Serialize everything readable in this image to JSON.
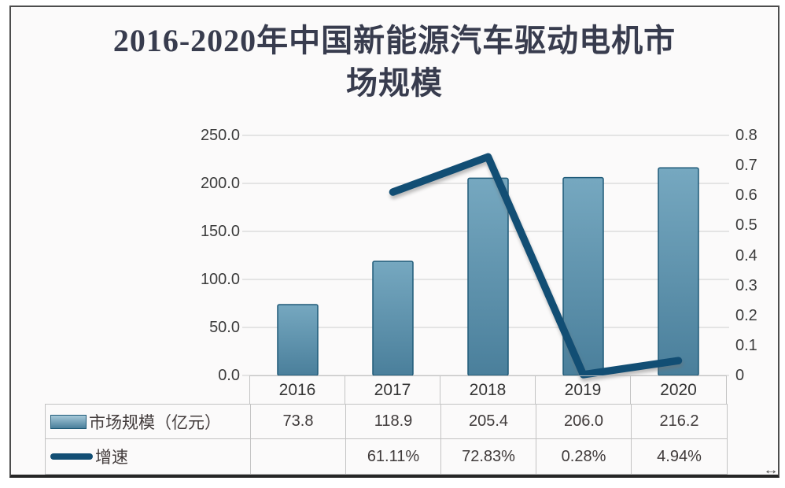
{
  "title": {
    "line1": "2016-2020年中国新能源汽车驱动电机市",
    "line2": "场规模"
  },
  "chart_data": {
    "type": "bar+line",
    "categories": [
      "2016",
      "2017",
      "2018",
      "2019",
      "2020"
    ],
    "series": [
      {
        "name": "市场规模（亿元）",
        "type": "bar",
        "axis": "left",
        "values": [
          73.8,
          118.9,
          205.4,
          206.0,
          216.2
        ]
      },
      {
        "name": "增速",
        "type": "line",
        "axis": "right",
        "values": [
          null,
          0.6111,
          0.7283,
          0.0028,
          0.0494
        ]
      }
    ],
    "left_axis": {
      "range": [
        0,
        250
      ],
      "ticks": [
        "250.0",
        "200.0",
        "150.0",
        "100.0",
        "50.0",
        "0.0"
      ]
    },
    "right_axis": {
      "range": [
        0,
        0.8
      ],
      "ticks": [
        "0.8",
        "0.7",
        "0.6",
        "0.5",
        "0.4",
        "0.3",
        "0.2",
        "0.1",
        "0"
      ]
    },
    "grid": true,
    "legend_position": "table-left"
  },
  "table": {
    "header": [
      "2016",
      "2017",
      "2018",
      "2019",
      "2020"
    ],
    "rows": [
      {
        "legend": "市场规模（亿元）",
        "swatch": "bar-swatch",
        "values": [
          "73.8",
          "118.9",
          "205.4",
          "206.0",
          "216.2"
        ]
      },
      {
        "legend": "增速",
        "swatch": "line-swatch",
        "values": [
          "",
          "61.11%",
          "72.83%",
          "0.28%",
          "4.94%"
        ]
      }
    ]
  },
  "colors": {
    "background": "#fbfafa",
    "frame_border": "#4d4d4d",
    "title_text": "#383c4e",
    "tick_text": "#3c3c3c",
    "grid_line": "#d6d6d6",
    "bar_fill_top": "#76a8c0",
    "bar_fill_bottom": "#4a7f9b",
    "bar_swatch_top": "#a6c9d9",
    "bar_border": "#1f5a78",
    "line": "#124e74",
    "table_border": "#c3c3c3",
    "table_text": "#3f3a3a"
  }
}
